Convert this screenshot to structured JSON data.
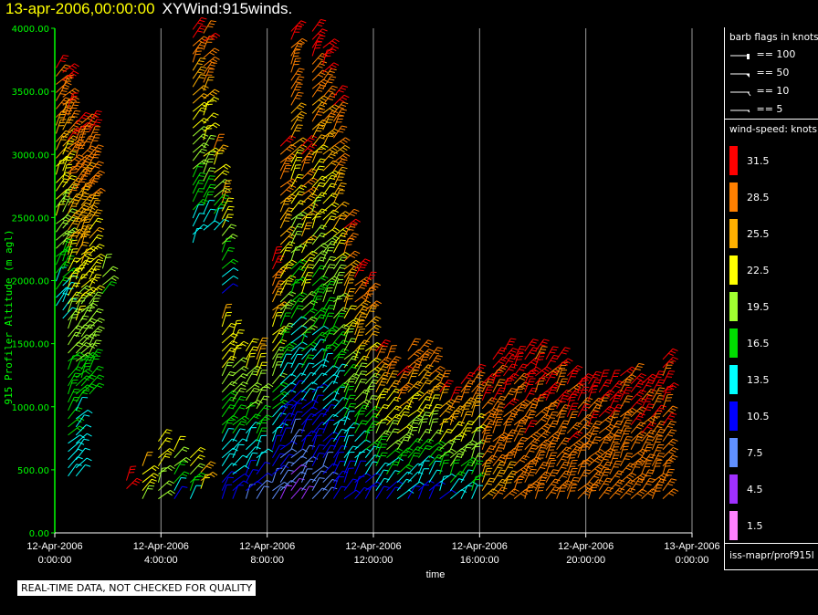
{
  "header": {
    "date_text": "13-apr-2006,00:00:00",
    "product_text": "XYWind:915winds."
  },
  "chart_data": {
    "type": "scatter",
    "subtype": "wind-barb time-height",
    "xlabel": "time",
    "ylabel": "915 Profiler Altitude (m agl)",
    "ylim": [
      0,
      4000
    ],
    "y_ticks": [
      "0.00",
      "500.00",
      "1000.00",
      "1500.00",
      "2000.00",
      "2500.00",
      "3000.00",
      "3500.00",
      "4000.00"
    ],
    "x_ticks": [
      {
        "hour": 0,
        "date": "12-Apr-2006",
        "time": "0:00:00"
      },
      {
        "hour": 4,
        "date": "12-Apr-2006",
        "time": "4:00:00"
      },
      {
        "hour": 8,
        "date": "12-Apr-2006",
        "time": "8:00:00"
      },
      {
        "hour": 12,
        "date": "12-Apr-2006",
        "time": "12:00:00"
      },
      {
        "hour": 16,
        "date": "12-Apr-2006",
        "time": "16:00:00"
      },
      {
        "hour": 20,
        "date": "12-Apr-2006",
        "time": "20:00:00"
      },
      {
        "hour": 24,
        "date": "13-Apr-2006",
        "time": "0:00:00"
      }
    ],
    "xlim_hours": [
      0,
      24
    ],
    "vertical_grid_hours": [
      4,
      8,
      12,
      16,
      20,
      24
    ],
    "barb_flag_legend": {
      "title": "barb flags in knots",
      "entries": [
        "== 100",
        "== 50",
        "== 10",
        "== 5"
      ]
    },
    "color_legend": {
      "title": "wind-speed: knots",
      "entries": [
        {
          "label": "31.5",
          "color": "#ff0000"
        },
        {
          "label": "28.5",
          "color": "#ff8000"
        },
        {
          "label": "25.5",
          "color": "#ffb000"
        },
        {
          "label": "22.5",
          "color": "#ffff00"
        },
        {
          "label": "19.5",
          "color": "#a0ff30"
        },
        {
          "label": "16.5",
          "color": "#00dd00"
        },
        {
          "label": "13.5",
          "color": "#00ffff"
        },
        {
          "label": "10.5",
          "color": "#0000ff"
        },
        {
          "label": "7.5",
          "color": "#6090ff"
        },
        {
          "label": "4.5",
          "color": "#a030ff"
        },
        {
          "label": "1.5",
          "color": "#ff80ff"
        }
      ]
    },
    "profile_columns": [
      {
        "hour": 0.05,
        "bottom": 1800,
        "top": 3700,
        "speed": [
          14,
          31
        ]
      },
      {
        "hour": 0.3,
        "bottom": 1700,
        "top": 3700,
        "speed": [
          12,
          31
        ]
      },
      {
        "hour": 0.5,
        "bottom": 450,
        "top": 3400,
        "speed": [
          13,
          31
        ]
      },
      {
        "hour": 0.8,
        "bottom": 450,
        "top": 3300,
        "speed": [
          12,
          31
        ]
      },
      {
        "hour": 1.0,
        "bottom": 1100,
        "top": 3300,
        "speed": [
          16,
          31
        ]
      },
      {
        "hour": 1.3,
        "bottom": 1100,
        "top": 3300,
        "speed": [
          16,
          31
        ]
      },
      {
        "hour": 1.8,
        "bottom": 1900,
        "top": 2100,
        "speed": [
          18,
          20
        ]
      },
      {
        "hour": 2.7,
        "bottom": 350,
        "top": 450,
        "speed": [
          31,
          31
        ]
      },
      {
        "hour": 3.3,
        "bottom": 270,
        "top": 550,
        "speed": [
          20,
          24
        ]
      },
      {
        "hour": 3.9,
        "bottom": 270,
        "top": 750,
        "speed": [
          19,
          24
        ]
      },
      {
        "hour": 4.5,
        "bottom": 270,
        "top": 700,
        "speed": [
          10,
          24
        ]
      },
      {
        "hour": 5.1,
        "bottom": 270,
        "top": 600,
        "speed": [
          12,
          24
        ]
      },
      {
        "hour": 5.5,
        "bottom": 350,
        "top": 500,
        "speed": [
          22,
          26
        ]
      },
      {
        "hour": 5.2,
        "bottom": 2300,
        "top": 4000,
        "speed": [
          12,
          31
        ]
      },
      {
        "hour": 5.6,
        "bottom": 2400,
        "top": 4000,
        "speed": [
          14,
          31
        ]
      },
      {
        "hour": 6.0,
        "bottom": 2400,
        "top": 3100,
        "speed": [
          13,
          28
        ]
      },
      {
        "hour": 6.3,
        "bottom": 1900,
        "top": 2700,
        "speed": [
          12,
          26
        ]
      },
      {
        "hour": 6.3,
        "bottom": 270,
        "top": 1700,
        "speed": [
          10,
          24
        ]
      },
      {
        "hour": 6.7,
        "bottom": 270,
        "top": 1600,
        "speed": [
          10,
          24
        ]
      },
      {
        "hour": 7.2,
        "bottom": 270,
        "top": 1500,
        "speed": [
          9,
          24
        ]
      },
      {
        "hour": 7.6,
        "bottom": 270,
        "top": 1500,
        "speed": [
          8,
          26
        ]
      },
      {
        "hour": 8.2,
        "bottom": 270,
        "top": 2200,
        "speed": [
          7,
          31
        ]
      },
      {
        "hour": 8.5,
        "bottom": 270,
        "top": 3100,
        "speed": [
          6,
          31
        ]
      },
      {
        "hour": 8.9,
        "bottom": 270,
        "top": 4000,
        "speed": [
          5,
          31
        ]
      },
      {
        "hour": 9.3,
        "bottom": 270,
        "top": 3100,
        "speed": [
          6,
          31
        ]
      },
      {
        "hour": 9.7,
        "bottom": 270,
        "top": 4000,
        "speed": [
          7,
          31
        ]
      },
      {
        "hour": 10.1,
        "bottom": 270,
        "top": 3900,
        "speed": [
          8,
          31
        ]
      },
      {
        "hour": 10.5,
        "bottom": 270,
        "top": 3500,
        "speed": [
          9,
          31
        ]
      },
      {
        "hour": 10.9,
        "bottom": 270,
        "top": 2500,
        "speed": [
          9,
          31
        ]
      },
      {
        "hour": 11.3,
        "bottom": 270,
        "top": 2100,
        "speed": [
          10,
          31
        ]
      },
      {
        "hour": 11.7,
        "bottom": 270,
        "top": 2000,
        "speed": [
          10,
          31
        ]
      },
      {
        "hour": 12.1,
        "bottom": 270,
        "top": 1500,
        "speed": [
          11,
          31
        ]
      },
      {
        "hour": 12.5,
        "bottom": 270,
        "top": 1400,
        "speed": [
          11,
          31
        ]
      },
      {
        "hour": 12.9,
        "bottom": 270,
        "top": 1300,
        "speed": [
          12,
          31
        ]
      },
      {
        "hour": 13.3,
        "bottom": 270,
        "top": 1500,
        "speed": [
          11,
          31
        ]
      },
      {
        "hour": 13.7,
        "bottom": 270,
        "top": 1500,
        "speed": [
          10,
          31
        ]
      },
      {
        "hour": 14.1,
        "bottom": 270,
        "top": 1400,
        "speed": [
          10,
          31
        ]
      },
      {
        "hour": 14.5,
        "bottom": 270,
        "top": 1200,
        "speed": [
          12,
          31
        ]
      },
      {
        "hour": 14.9,
        "bottom": 270,
        "top": 1100,
        "speed": [
          13,
          31
        ]
      },
      {
        "hour": 15.3,
        "bottom": 270,
        "top": 1200,
        "speed": [
          13,
          31
        ]
      },
      {
        "hour": 15.7,
        "bottom": 270,
        "top": 1300,
        "speed": [
          14,
          31
        ]
      },
      {
        "hour": 16.1,
        "bottom": 270,
        "top": 1200,
        "speed": [
          26,
          31
        ]
      },
      {
        "hour": 16.5,
        "bottom": 270,
        "top": 1400,
        "speed": [
          27,
          31
        ]
      },
      {
        "hour": 16.9,
        "bottom": 270,
        "top": 1500,
        "speed": [
          27,
          31
        ]
      },
      {
        "hour": 17.3,
        "bottom": 270,
        "top": 1400,
        "speed": [
          28,
          31
        ]
      },
      {
        "hour": 17.7,
        "bottom": 270,
        "top": 1500,
        "speed": [
          28,
          31
        ]
      },
      {
        "hour": 18.1,
        "bottom": 270,
        "top": 1500,
        "speed": [
          28,
          31
        ]
      },
      {
        "hour": 18.5,
        "bottom": 270,
        "top": 1400,
        "speed": [
          28,
          31
        ]
      },
      {
        "hour": 18.9,
        "bottom": 270,
        "top": 1400,
        "speed": [
          28,
          31
        ]
      },
      {
        "hour": 19.3,
        "bottom": 270,
        "top": 1300,
        "speed": [
          28,
          31
        ]
      },
      {
        "hour": 19.7,
        "bottom": 270,
        "top": 1200,
        "speed": [
          28,
          31
        ]
      },
      {
        "hour": 20.1,
        "bottom": 270,
        "top": 1200,
        "speed": [
          28,
          31
        ]
      },
      {
        "hour": 20.5,
        "bottom": 270,
        "top": 1200,
        "speed": [
          28,
          31
        ]
      },
      {
        "hour": 20.9,
        "bottom": 270,
        "top": 1200,
        "speed": [
          28,
          31
        ]
      },
      {
        "hour": 21.3,
        "bottom": 270,
        "top": 1300,
        "speed": [
          28,
          31
        ]
      },
      {
        "hour": 21.7,
        "bottom": 270,
        "top": 1300,
        "speed": [
          28,
          31
        ]
      },
      {
        "hour": 22.1,
        "bottom": 270,
        "top": 1200,
        "speed": [
          28,
          31
        ]
      },
      {
        "hour": 22.5,
        "bottom": 270,
        "top": 1200,
        "speed": [
          28,
          31
        ]
      },
      {
        "hour": 22.9,
        "bottom": 270,
        "top": 1400,
        "speed": [
          28,
          31
        ]
      }
    ]
  },
  "legend_panel": {
    "flags_title": "barb flags in knots",
    "speed_title": "wind-speed: knots",
    "source": "iss-mapr/prof915l"
  },
  "footer": {
    "qc_notice": "REAL-TIME DATA, NOT CHECKED FOR QUALITY"
  }
}
